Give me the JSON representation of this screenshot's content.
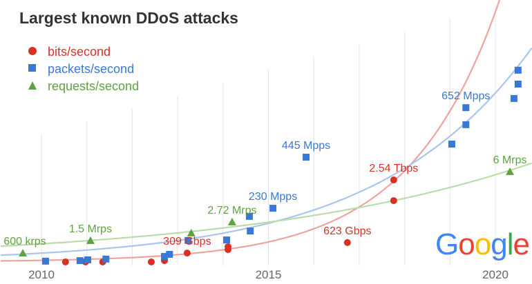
{
  "chart_data": {
    "type": "scatter",
    "title": "Largest known DDoS attacks",
    "xlabel": "",
    "ylabel": "",
    "xlim": [
      2009.1,
      2020.8
    ],
    "ylim": [
      0,
      100
    ],
    "x_ticks": [
      2010,
      2015,
      2020
    ],
    "grid": "vertical yearly lines",
    "legend_placement": "top-left",
    "series": [
      {
        "name": "bits/second",
        "marker": "circle",
        "color": "#d93025",
        "trend_color": "#eda49c",
        "points": [
          [
            2010.53,
            0
          ],
          [
            2010.97,
            0
          ],
          [
            2011.35,
            0
          ],
          [
            2012.42,
            0
          ],
          [
            2012.71,
            0.5
          ],
          [
            2012.71,
            1
          ],
          [
            2013.21,
            3.4
          ],
          [
            2014.11,
            4.7
          ],
          [
            2014.11,
            5.8
          ],
          [
            2016.74,
            7.4
          ],
          [
            2017.76,
            23.4
          ],
          [
            2017.76,
            31.3
          ]
        ],
        "annotations": [
          {
            "text": "309 Gbps",
            "x": 2013.21,
            "y": 3.4
          },
          {
            "text": "623 Gbps",
            "x": 2016.74,
            "y": 7.4
          },
          {
            "text": "2.54 Tbps",
            "x": 2017.76,
            "y": 31.3
          }
        ]
      },
      {
        "name": "packets/second",
        "marker": "square",
        "color": "#3a78d8",
        "trend_color": "#a9c5ee",
        "points": [
          [
            2010.09,
            0.3
          ],
          [
            2010.85,
            0.5
          ],
          [
            2011.02,
            0.8
          ],
          [
            2011.42,
            1.1
          ],
          [
            2012.71,
            2.1
          ],
          [
            2012.82,
            2.9
          ],
          [
            2013.23,
            8.2
          ],
          [
            2014.08,
            8.4
          ],
          [
            2014.6,
            11.8
          ],
          [
            2014.58,
            17.4
          ],
          [
            2015.1,
            20.5
          ],
          [
            2015.83,
            40
          ],
          [
            2019.04,
            45
          ],
          [
            2019.35,
            52.4
          ],
          [
            2019.35,
            58.9
          ],
          [
            2020.41,
            62.4
          ],
          [
            2020.5,
            67.9
          ],
          [
            2020.5,
            73.2
          ]
        ],
        "annotations": [
          {
            "text": "230 Mpps",
            "x": 2015.1,
            "y": 20.5
          },
          {
            "text": "445 Mpps",
            "x": 2015.83,
            "y": 40
          },
          {
            "text": "652 Mpps",
            "x": 2019.35,
            "y": 58.9
          }
        ]
      },
      {
        "name": "requests/second",
        "marker": "triangle",
        "color": "#5ea33f",
        "trend_color": "#b9dca9",
        "points": [
          [
            2009.59,
            3.4
          ],
          [
            2011.08,
            8.2
          ],
          [
            2013.3,
            11.1
          ],
          [
            2014.2,
            15.3
          ],
          [
            2020.32,
            34.5
          ]
        ],
        "annotations": [
          {
            "text": "600 krps",
            "x": 2009.59,
            "y": 3.4
          },
          {
            "text": "1.5 Mrps",
            "x": 2011.08,
            "y": 8.2
          },
          {
            "text": "2.72 Mrps",
            "x": 2014.2,
            "y": 15.3
          },
          {
            "text": "6 Mrps",
            "x": 2020.32,
            "y": 34.5
          }
        ]
      }
    ]
  },
  "logo": {
    "letters": [
      "G",
      "o",
      "o",
      "g",
      "l",
      "e"
    ],
    "colors": [
      "#4285f4",
      "#ea4335",
      "#fbbc05",
      "#4285f4",
      "#34a853",
      "#ea4335"
    ]
  }
}
